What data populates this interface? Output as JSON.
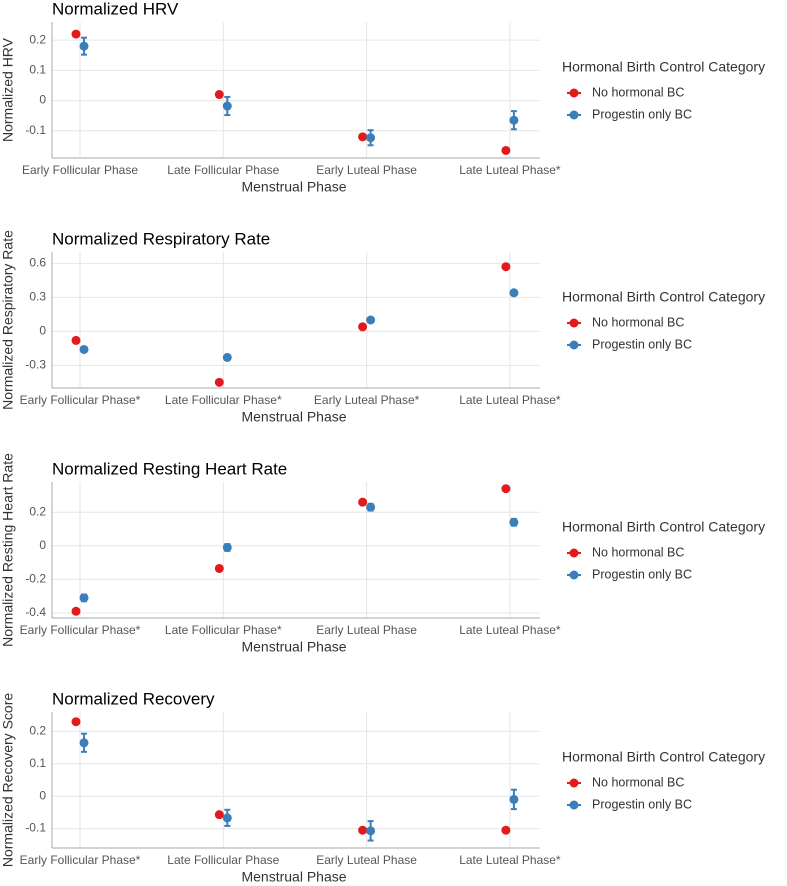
{
  "chart_data": [
    {
      "type": "dot",
      "title": "Normalized HRV",
      "x_label": "Menstrual Phase",
      "y_label": "Normalized HRV",
      "categories": [
        "Early Follicular Phase",
        "Late Follicular Phase",
        "Early Luteal Phase",
        "Late Luteal Phase*"
      ],
      "ylim": [
        -0.19,
        0.26
      ],
      "yticks": [
        -0.1,
        0.0,
        0.1,
        0.2
      ],
      "grid": true,
      "legend_title": "Hormonal Birth Control Category",
      "series": [
        {
          "name": "No hormonal BC",
          "color": "#e31a1c",
          "values": [
            0.22,
            0.02,
            -0.12,
            -0.165
          ]
        },
        {
          "name": "Progestin only BC",
          "color": "#3a7fba",
          "values": [
            0.18,
            -0.018,
            -0.123,
            -0.065
          ],
          "errors": [
            0.028,
            0.03,
            0.025,
            0.03
          ]
        }
      ]
    },
    {
      "type": "dot",
      "title": "Normalized Respiratory Rate",
      "x_label": "Menstrual Phase",
      "y_label": "Normalized Respiratory Rate",
      "categories": [
        "Early Follicular Phase*",
        "Late Follicular Phase*",
        "Early Luteal Phase*",
        "Late Luteal Phase*"
      ],
      "ylim": [
        -0.5,
        0.7
      ],
      "yticks": [
        -0.3,
        0.0,
        0.3,
        0.6
      ],
      "grid": true,
      "legend_title": "Hormonal Birth Control Category",
      "series": [
        {
          "name": "No hormonal BC",
          "color": "#e31a1c",
          "values": [
            -0.08,
            -0.45,
            0.04,
            0.57
          ]
        },
        {
          "name": "Progestin only BC",
          "color": "#3a7fba",
          "values": [
            -0.16,
            -0.23,
            0.1,
            0.34
          ],
          "errors": [
            0.012,
            0.015,
            0.015,
            0.015
          ]
        }
      ]
    },
    {
      "type": "dot",
      "title": "Normalized Resting Heart Rate",
      "x_label": "Menstrual Phase",
      "y_label": "Normalized Resting Heart Rate",
      "categories": [
        "Early Follicular Phase*",
        "Late Follicular Phase*",
        "Early Luteal Phase",
        "Late Luteal Phase*"
      ],
      "ylim": [
        -0.43,
        0.38
      ],
      "yticks": [
        -0.4,
        -0.2,
        0.0,
        0.2
      ],
      "grid": true,
      "legend_title": "Hormonal Birth Control Category",
      "series": [
        {
          "name": "No hormonal BC",
          "color": "#e31a1c",
          "values": [
            -0.39,
            -0.135,
            0.26,
            0.34
          ]
        },
        {
          "name": "Progestin only BC",
          "color": "#3a7fba",
          "values": [
            -0.31,
            -0.01,
            0.23,
            0.14
          ],
          "errors": [
            0.02,
            0.02,
            0.02,
            0.02
          ]
        }
      ]
    },
    {
      "type": "dot",
      "title": "Normalized Recovery",
      "x_label": "Menstrual Phase",
      "y_label": "Normalized Recovery Score",
      "categories": [
        "Early Follicular Phase*",
        "Late Follicular Phase",
        "Early Luteal Phase",
        "Late Luteal Phase*"
      ],
      "ylim": [
        -0.16,
        0.26
      ],
      "yticks": [
        -0.1,
        0.0,
        0.1,
        0.2
      ],
      "grid": true,
      "legend_title": "Hormonal Birth Control Category",
      "series": [
        {
          "name": "No hormonal BC",
          "color": "#e31a1c",
          "values": [
            0.23,
            -0.057,
            -0.105,
            -0.105
          ]
        },
        {
          "name": "Progestin only BC",
          "color": "#3a7fba",
          "values": [
            0.165,
            -0.067,
            -0.107,
            -0.01
          ],
          "errors": [
            0.028,
            0.025,
            0.03,
            0.03
          ]
        }
      ]
    }
  ]
}
